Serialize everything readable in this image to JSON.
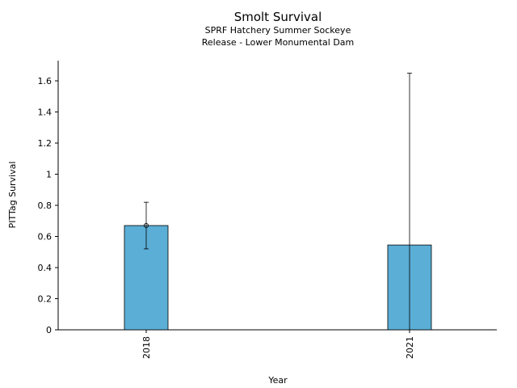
{
  "chart_data": {
    "type": "bar",
    "title": "Smolt Survival",
    "subtitle": [
      "SPRF Hatchery Summer Sockeye",
      "Release - Lower Monumental Dam"
    ],
    "xlabel": "Year",
    "ylabel": "PITTag Survival",
    "categories": [
      "2018",
      "2021"
    ],
    "values": [
      0.67,
      0.545
    ],
    "error_low": [
      0.52,
      0.0
    ],
    "error_high": [
      0.82,
      1.65
    ],
    "point_marker": [
      true,
      false
    ],
    "ylim": [
      0,
      1.73
    ],
    "yticks": [
      0,
      0.2,
      0.4,
      0.6,
      0.8,
      1,
      1.2,
      1.4,
      1.6
    ],
    "ytick_labels": [
      "0",
      "0.2",
      "0.4",
      "0.6",
      "0.8",
      "1",
      "1.2",
      "1.4",
      "1.6"
    ],
    "grid": false,
    "legend": "none",
    "bar_color": "#5BAED6"
  }
}
